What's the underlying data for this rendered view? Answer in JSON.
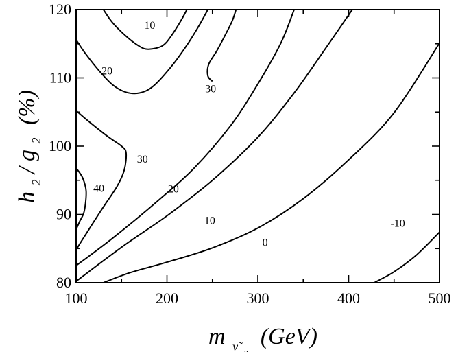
{
  "chart_data": {
    "type": "line",
    "title": "",
    "xlabel": {
      "main": "m",
      "subscript_base": "ν̃",
      "subscript_sub": "e",
      "unit": "(GeV)"
    },
    "ylabel": {
      "h": "h",
      "h_sub": "2",
      "slash": "/",
      "g": "g",
      "g_sub": "2",
      "unit": "(%)"
    },
    "xlim": [
      100,
      500
    ],
    "ylim": [
      80,
      120
    ],
    "x_ticks": [
      100,
      200,
      300,
      400,
      500
    ],
    "x_tick_labels": [
      "100",
      "200",
      "300",
      "400",
      "500"
    ],
    "y_ticks": [
      80,
      90,
      100,
      110,
      120
    ],
    "y_tick_labels": [
      "80",
      "90",
      "100",
      "110",
      "120"
    ],
    "x_minor_step": 50,
    "y_minor_step": 5,
    "grid": false,
    "contours": [
      {
        "level": "10",
        "label": "10",
        "label_pos": [
          175,
          117.2
        ],
        "points": [
          [
            130,
            120
          ],
          [
            140,
            118.1
          ],
          [
            155,
            116.1
          ],
          [
            170,
            114.6
          ],
          [
            180,
            114.2
          ],
          [
            195,
            114.7
          ],
          [
            205,
            116.2
          ],
          [
            215,
            118.3
          ],
          [
            222,
            120
          ]
        ]
      },
      {
        "level": "20",
        "label": "20",
        "label_pos": [
          128,
          110.5
        ],
        "points": [
          [
            100,
            115.6
          ],
          [
            110,
            113.6
          ],
          [
            125,
            111.1
          ],
          [
            140,
            109.0
          ],
          [
            155,
            107.9
          ],
          [
            170,
            107.8
          ],
          [
            185,
            108.8
          ],
          [
            205,
            111.7
          ],
          [
            222,
            114.8
          ],
          [
            235,
            117.6
          ],
          [
            245,
            120
          ]
        ]
      },
      {
        "level": "30",
        "label": "30",
        "label_pos": [
          242,
          107.9
        ],
        "points": [
          [
            250,
            109.5
          ],
          [
            245,
            110.3
          ],
          [
            246,
            112.0
          ],
          [
            255,
            114.0
          ],
          [
            265,
            116.5
          ],
          [
            272,
            118.4
          ],
          [
            276,
            120
          ]
        ]
      },
      {
        "level": "30",
        "label": "30",
        "label_pos": [
          167,
          97.6
        ],
        "points": [
          [
            100,
            105.2
          ],
          [
            115,
            103.5
          ],
          [
            135,
            101.4
          ],
          [
            150,
            100.0
          ],
          [
            155,
            99.0
          ],
          [
            153,
            96.5
          ],
          [
            145,
            94.1
          ],
          [
            130,
            91.1
          ],
          [
            115,
            88.0
          ],
          [
            105,
            85.9
          ],
          [
            100,
            84.8
          ]
        ]
      },
      {
        "level": "40",
        "label": "40",
        "label_pos": [
          119,
          93.3
        ],
        "points": [
          [
            100,
            96.8
          ],
          [
            107,
            95.4
          ],
          [
            111,
            93.4
          ],
          [
            109,
            90.5
          ],
          [
            104,
            89.0
          ],
          [
            100,
            87.8
          ]
        ]
      },
      {
        "level": "20",
        "label": "20",
        "label_pos": [
          201,
          93.2
        ],
        "points": [
          [
            100,
            82.5
          ],
          [
            140,
            86.5
          ],
          [
            190,
            92.0
          ],
          [
            230,
            96.8
          ],
          [
            270,
            103.0
          ],
          [
            300,
            109.1
          ],
          [
            325,
            115.0
          ],
          [
            340,
            120
          ]
        ]
      },
      {
        "level": "10",
        "label": "10",
        "label_pos": [
          241,
          88.6
        ],
        "points": [
          [
            100,
            80.2
          ],
          [
            150,
            85.2
          ],
          [
            200,
            89.8
          ],
          [
            250,
            95.0
          ],
          [
            300,
            101.3
          ],
          [
            340,
            107.8
          ],
          [
            375,
            114.4
          ],
          [
            404,
            120
          ]
        ]
      },
      {
        "level": "0",
        "label": "0",
        "label_pos": [
          305,
          85.4
        ],
        "points": [
          [
            130,
            80
          ],
          [
            160,
            81.5
          ],
          [
            200,
            83.0
          ],
          [
            250,
            85.1
          ],
          [
            300,
            88.0
          ],
          [
            350,
            92.3
          ],
          [
            400,
            98.0
          ],
          [
            450,
            104.9
          ],
          [
            500,
            115.1
          ]
        ]
      },
      {
        "level": "-10",
        "label": "-10",
        "label_pos": [
          446,
          88.2
        ],
        "points": [
          [
            428,
            80
          ],
          [
            450,
            81.6
          ],
          [
            475,
            84.1
          ],
          [
            500,
            87.4
          ]
        ]
      }
    ]
  }
}
